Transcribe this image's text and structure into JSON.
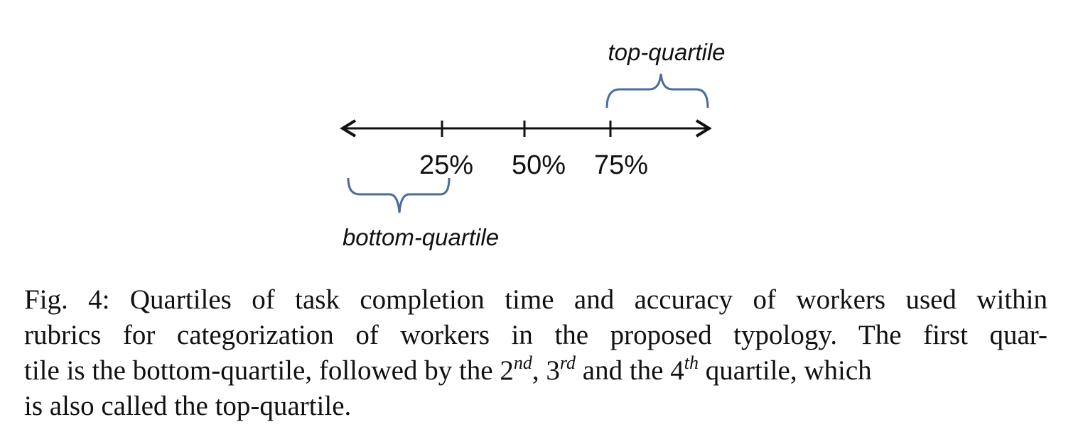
{
  "diagram": {
    "tick_labels": [
      "25%",
      "50%",
      "75%"
    ],
    "top_label": "top-quartile",
    "bottom_label": "bottom-quartile",
    "colors": {
      "axis": "#111111",
      "brace": "#4a6aa0"
    }
  },
  "caption": {
    "line1": "Fig. 4: Quartiles of task completion time and accuracy of workers used within",
    "line2": "rubrics for categorization of workers in the proposed typology. The first quar-",
    "line3_a": "tile is the bottom-quartile, followed by the 2",
    "line3_sup1": "nd",
    "line3_b": ", 3",
    "line3_sup2": "rd",
    "line3_c": " and the 4",
    "line3_sup3": "th",
    "line3_d": " quartile, which",
    "line4": "is also called the top-quartile."
  }
}
